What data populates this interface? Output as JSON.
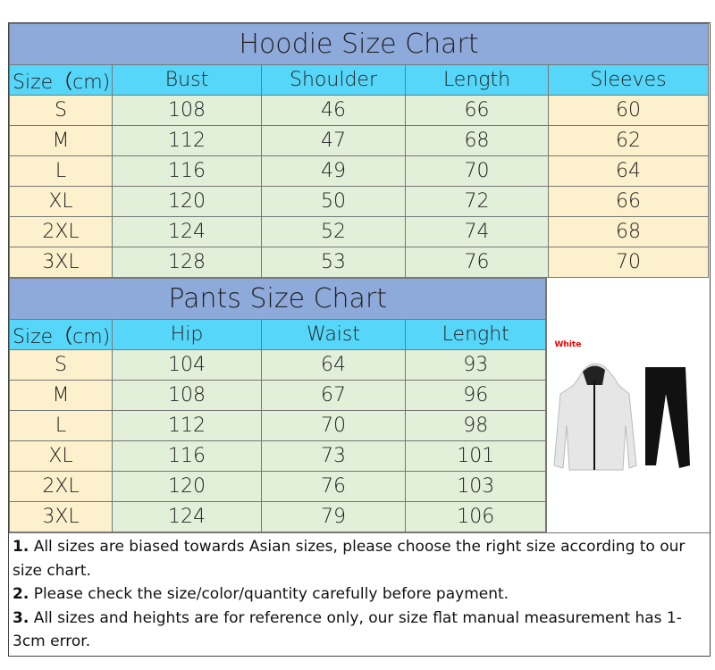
{
  "hoodie": {
    "title": "Hoodie Size Chart",
    "headers": [
      "Size（cm)",
      "Bust",
      "Shoulder",
      "Length",
      "Sleeves"
    ],
    "rows": [
      [
        "S",
        "108",
        "46",
        "66",
        "60"
      ],
      [
        "M",
        "112",
        "47",
        "68",
        "62"
      ],
      [
        "L",
        "116",
        "49",
        "70",
        "64"
      ],
      [
        "XL",
        "120",
        "50",
        "72",
        "66"
      ],
      [
        "2XL",
        "124",
        "52",
        "74",
        "68"
      ],
      [
        "3XL",
        "128",
        "53",
        "76",
        "70"
      ]
    ]
  },
  "pants": {
    "title": "Pants Size Chart",
    "headers": [
      "Size（cm)",
      "Hip",
      "Waist",
      "Lenght"
    ],
    "rows": [
      [
        "S",
        "104",
        "64",
        "93"
      ],
      [
        "M",
        "108",
        "67",
        "96"
      ],
      [
        "L",
        "112",
        "70",
        "98"
      ],
      [
        "XL",
        "116",
        "73",
        "101"
      ],
      [
        "2XL",
        "120",
        "76",
        "103"
      ],
      [
        "3XL",
        "124",
        "79",
        "106"
      ]
    ]
  },
  "image": {
    "label": "White",
    "colors": {
      "hoodie": "#e6e6e6",
      "pants": "#111111"
    }
  },
  "notes": [
    {
      "num": "1.",
      "text": "All sizes are biased towards Asian sizes, please choose the right size according to our size chart."
    },
    {
      "num": "2.",
      "text": "Please check the size/color/quantity carefully before payment."
    },
    {
      "num": "3.",
      "text": "All sizes and heights are for reference only, our size flat manual measurement has 1-3cm error."
    }
  ],
  "colors": {
    "title_bg": "#8eaadb",
    "header_bg": "#56d7fa",
    "size_bg": "#fdf0cc",
    "cell_bg": "#e2efd9"
  }
}
